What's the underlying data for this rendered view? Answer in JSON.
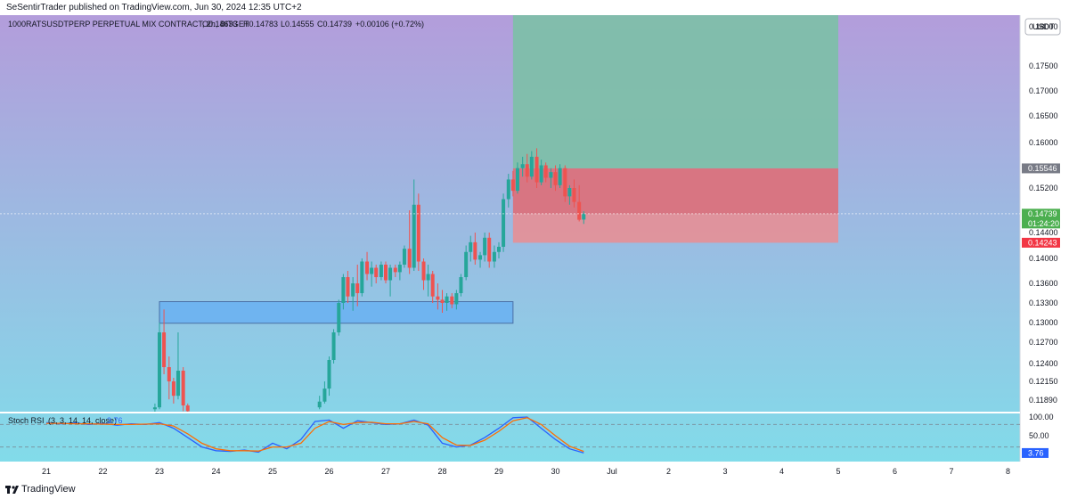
{
  "header": {
    "publisher_line": "SeSentirTrader published on TradingView.com, Jun 30, 2024 12:35 UTC+2"
  },
  "footer": {
    "brand": "TradingView",
    "logo_icon": "tradingview-logo-icon"
  },
  "colors": {
    "bull": "#26a69a",
    "bear": "#ef5350",
    "bg_top": "#b39ddb",
    "bg_bottom": "#80deea",
    "target_zone": "#7cc0a6",
    "stop_zone": "#de6e78",
    "demand_zone": "#6fb4f0",
    "rsi_k": "#2962ff",
    "rsi_d": "#ff6d00"
  },
  "chart_data": [
    {
      "type": "candlestick",
      "symbol_line": "1000RATSUSDTPERP PERPETUAL MIX CONTRACT, 2h, BITGET",
      "ohlc_line": {
        "open": "O0.14633",
        "high": "H0.14783",
        "low": "L0.14555",
        "close": "C0.14739",
        "change": "+0.00106 (+0.72%)"
      },
      "currency": "USDT",
      "y_ticks": [
        "0.18000",
        "0.17500",
        "0.17000",
        "0.16500",
        "0.16000",
        "0.15200",
        "0.14400",
        "0.14000",
        "0.13600",
        "0.13300",
        "0.13000",
        "0.12700",
        "0.12400",
        "0.12150",
        "0.11890"
      ],
      "y_tick_values": [
        0.18,
        0.175,
        0.17,
        0.165,
        0.16,
        0.152,
        0.144,
        0.14,
        0.136,
        0.133,
        0.13,
        0.127,
        0.124,
        0.1215,
        0.1189
      ],
      "x_ticks": [
        "21",
        "22",
        "23",
        "24",
        "25",
        "26",
        "27",
        "28",
        "29",
        "30",
        "Jul",
        "2",
        "3",
        "4",
        "5",
        "6",
        "7",
        "8"
      ],
      "price_labels": {
        "target_entry": "0.15546",
        "last_price": "0.14739",
        "countdown": "01:24:20",
        "stop": "0.14243"
      },
      "price_label_values": {
        "target_entry": 0.15546,
        "last_price": 0.14739,
        "stop": 0.14243
      },
      "zones": {
        "target": {
          "from_day": 29.25,
          "to_day": 35.0,
          "price_low": 0.15546,
          "price_high": 0.1825
        },
        "stop": {
          "from_day": 29.25,
          "to_day": 35.0,
          "price_low": 0.14243,
          "price_high": 0.15546
        },
        "demand": {
          "from_day": 23.0,
          "to_day": 29.25,
          "price_low": 0.1299,
          "price_high": 0.1332
        }
      },
      "candles": [
        {
          "d": 22.92,
          "o": 0.1165,
          "h": 0.118,
          "l": 0.115,
          "c": 0.117
        },
        {
          "d": 23.0,
          "o": 0.117,
          "h": 0.13,
          "l": 0.1165,
          "c": 0.1285
        },
        {
          "d": 23.08,
          "o": 0.1285,
          "h": 0.132,
          "l": 0.1225,
          "c": 0.1235
        },
        {
          "d": 23.17,
          "o": 0.1235,
          "h": 0.125,
          "l": 0.119,
          "c": 0.1215
        },
        {
          "d": 23.25,
          "o": 0.1215,
          "h": 0.122,
          "l": 0.118,
          "c": 0.1195
        },
        {
          "d": 23.33,
          "o": 0.1195,
          "h": 0.1285,
          "l": 0.119,
          "c": 0.123
        },
        {
          "d": 23.42,
          "o": 0.123,
          "h": 0.1235,
          "l": 0.116,
          "c": 0.1175
        },
        {
          "d": 23.5,
          "o": 0.1175,
          "h": 0.118,
          "l": 0.115,
          "c": 0.116
        },
        {
          "d": 25.83,
          "o": 0.117,
          "h": 0.1195,
          "l": 0.1165,
          "c": 0.1185
        },
        {
          "d": 25.92,
          "o": 0.1185,
          "h": 0.1215,
          "l": 0.118,
          "c": 0.1205
        },
        {
          "d": 26.0,
          "o": 0.1205,
          "h": 0.125,
          "l": 0.1195,
          "c": 0.1245
        },
        {
          "d": 26.08,
          "o": 0.1245,
          "h": 0.129,
          "l": 0.124,
          "c": 0.1285
        },
        {
          "d": 26.17,
          "o": 0.1285,
          "h": 0.1335,
          "l": 0.128,
          "c": 0.133
        },
        {
          "d": 26.25,
          "o": 0.133,
          "h": 0.1375,
          "l": 0.132,
          "c": 0.137
        },
        {
          "d": 26.33,
          "o": 0.137,
          "h": 0.138,
          "l": 0.133,
          "c": 0.134
        },
        {
          "d": 26.42,
          "o": 0.134,
          "h": 0.137,
          "l": 0.1318,
          "c": 0.136
        },
        {
          "d": 26.5,
          "o": 0.136,
          "h": 0.139,
          "l": 0.1325,
          "c": 0.1345
        },
        {
          "d": 26.58,
          "o": 0.1345,
          "h": 0.14,
          "l": 0.134,
          "c": 0.1395
        },
        {
          "d": 26.67,
          "o": 0.1395,
          "h": 0.141,
          "l": 0.1365,
          "c": 0.1375
        },
        {
          "d": 26.75,
          "o": 0.1375,
          "h": 0.1395,
          "l": 0.1355,
          "c": 0.1385
        },
        {
          "d": 26.83,
          "o": 0.1385,
          "h": 0.139,
          "l": 0.136,
          "c": 0.137
        },
        {
          "d": 26.92,
          "o": 0.137,
          "h": 0.1395,
          "l": 0.1365,
          "c": 0.139
        },
        {
          "d": 27.0,
          "o": 0.139,
          "h": 0.1395,
          "l": 0.136,
          "c": 0.1365
        },
        {
          "d": 27.08,
          "o": 0.1365,
          "h": 0.139,
          "l": 0.134,
          "c": 0.1385
        },
        {
          "d": 27.17,
          "o": 0.1385,
          "h": 0.139,
          "l": 0.137,
          "c": 0.1378
        },
        {
          "d": 27.25,
          "o": 0.1378,
          "h": 0.1395,
          "l": 0.1365,
          "c": 0.139
        },
        {
          "d": 27.33,
          "o": 0.139,
          "h": 0.142,
          "l": 0.1385,
          "c": 0.1415
        },
        {
          "d": 27.42,
          "o": 0.1415,
          "h": 0.148,
          "l": 0.1375,
          "c": 0.1385
        },
        {
          "d": 27.5,
          "o": 0.1385,
          "h": 0.1535,
          "l": 0.138,
          "c": 0.149
        },
        {
          "d": 27.58,
          "o": 0.149,
          "h": 0.151,
          "l": 0.138,
          "c": 0.1395
        },
        {
          "d": 27.67,
          "o": 0.1395,
          "h": 0.14,
          "l": 0.135,
          "c": 0.1365
        },
        {
          "d": 27.75,
          "o": 0.1365,
          "h": 0.139,
          "l": 0.134,
          "c": 0.1375
        },
        {
          "d": 27.83,
          "o": 0.1375,
          "h": 0.138,
          "l": 0.133,
          "c": 0.134
        },
        {
          "d": 27.92,
          "o": 0.134,
          "h": 0.136,
          "l": 0.132,
          "c": 0.1335
        },
        {
          "d": 28.0,
          "o": 0.1335,
          "h": 0.135,
          "l": 0.1315,
          "c": 0.133
        },
        {
          "d": 28.08,
          "o": 0.133,
          "h": 0.1345,
          "l": 0.1318,
          "c": 0.134
        },
        {
          "d": 28.17,
          "o": 0.134,
          "h": 0.1345,
          "l": 0.1322,
          "c": 0.1328
        },
        {
          "d": 28.25,
          "o": 0.1328,
          "h": 0.135,
          "l": 0.132,
          "c": 0.1345
        },
        {
          "d": 28.33,
          "o": 0.1345,
          "h": 0.1375,
          "l": 0.134,
          "c": 0.137
        },
        {
          "d": 28.42,
          "o": 0.137,
          "h": 0.142,
          "l": 0.1365,
          "c": 0.141
        },
        {
          "d": 28.5,
          "o": 0.141,
          "h": 0.1435,
          "l": 0.1395,
          "c": 0.1425
        },
        {
          "d": 28.58,
          "o": 0.1425,
          "h": 0.144,
          "l": 0.139,
          "c": 0.1398
        },
        {
          "d": 28.67,
          "o": 0.1398,
          "h": 0.141,
          "l": 0.1385,
          "c": 0.1405
        },
        {
          "d": 28.75,
          "o": 0.1405,
          "h": 0.144,
          "l": 0.1395,
          "c": 0.1432
        },
        {
          "d": 28.83,
          "o": 0.1432,
          "h": 0.144,
          "l": 0.1385,
          "c": 0.1395
        },
        {
          "d": 28.92,
          "o": 0.1395,
          "h": 0.142,
          "l": 0.1385,
          "c": 0.141
        },
        {
          "d": 29.0,
          "o": 0.141,
          "h": 0.1425,
          "l": 0.14,
          "c": 0.1418
        },
        {
          "d": 29.08,
          "o": 0.1418,
          "h": 0.151,
          "l": 0.141,
          "c": 0.15
        },
        {
          "d": 29.17,
          "o": 0.15,
          "h": 0.1545,
          "l": 0.1485,
          "c": 0.1535
        },
        {
          "d": 29.25,
          "o": 0.1535,
          "h": 0.155,
          "l": 0.1505,
          "c": 0.1515
        },
        {
          "d": 29.33,
          "o": 0.1515,
          "h": 0.1565,
          "l": 0.151,
          "c": 0.1555
        },
        {
          "d": 29.42,
          "o": 0.1555,
          "h": 0.1575,
          "l": 0.154,
          "c": 0.1562
        },
        {
          "d": 29.5,
          "o": 0.1562,
          "h": 0.158,
          "l": 0.153,
          "c": 0.154
        },
        {
          "d": 29.58,
          "o": 0.154,
          "h": 0.1585,
          "l": 0.1535,
          "c": 0.1575
        },
        {
          "d": 29.67,
          "o": 0.1575,
          "h": 0.159,
          "l": 0.152,
          "c": 0.153
        },
        {
          "d": 29.75,
          "o": 0.153,
          "h": 0.157,
          "l": 0.1525,
          "c": 0.156
        },
        {
          "d": 29.83,
          "o": 0.156,
          "h": 0.1565,
          "l": 0.153,
          "c": 0.1538
        },
        {
          "d": 29.92,
          "o": 0.1538,
          "h": 0.1555,
          "l": 0.152,
          "c": 0.1548
        },
        {
          "d": 30.0,
          "o": 0.1548,
          "h": 0.156,
          "l": 0.1515,
          "c": 0.1525
        },
        {
          "d": 30.08,
          "o": 0.1525,
          "h": 0.1562,
          "l": 0.152,
          "c": 0.1555
        },
        {
          "d": 30.17,
          "o": 0.1555,
          "h": 0.156,
          "l": 0.1495,
          "c": 0.1505
        },
        {
          "d": 30.25,
          "o": 0.1505,
          "h": 0.1525,
          "l": 0.149,
          "c": 0.152
        },
        {
          "d": 30.33,
          "o": 0.152,
          "h": 0.1535,
          "l": 0.1485,
          "c": 0.1495
        },
        {
          "d": 30.42,
          "o": 0.1495,
          "h": 0.1525,
          "l": 0.146,
          "c": 0.1463
        },
        {
          "d": 30.5,
          "o": 0.14633,
          "h": 0.14783,
          "l": 0.14555,
          "c": 0.14739
        }
      ]
    },
    {
      "type": "line",
      "indicator": "Stoch RSI",
      "params": "(3, 3, 14, 14, close)",
      "current_value": "3.76",
      "current_value_num": 3.76,
      "y_ticks": [
        "100.00",
        "50.00"
      ],
      "y_tick_values": [
        100,
        50
      ],
      "ylim": [
        0,
        100
      ],
      "x": [
        21.0,
        21.25,
        21.5,
        21.75,
        22.0,
        22.25,
        22.5,
        22.75,
        23.0,
        23.25,
        23.5,
        23.75,
        24.0,
        24.25,
        24.5,
        24.75,
        25.0,
        25.25,
        25.5,
        25.75,
        26.0,
        26.25,
        26.5,
        26.75,
        27.0,
        27.25,
        27.5,
        27.75,
        28.0,
        28.25,
        28.5,
        28.75,
        29.0,
        29.25,
        29.5,
        29.75,
        30.0,
        30.25,
        30.5
      ],
      "series": [
        {
          "values": [
            85,
            82,
            84,
            80,
            83,
            78,
            82,
            80,
            85,
            70,
            45,
            20,
            10,
            8,
            12,
            6,
            30,
            15,
            40,
            88,
            92,
            70,
            90,
            85,
            80,
            82,
            92,
            78,
            30,
            20,
            25,
            45,
            70,
            98,
            100,
            70,
            40,
            15,
            4
          ]
        },
        {
          "values": [
            83,
            83,
            82,
            82,
            81,
            80,
            80,
            81,
            82,
            76,
            55,
            30,
            15,
            10,
            10,
            9,
            20,
            20,
            30,
            70,
            88,
            80,
            85,
            86,
            82,
            82,
            88,
            82,
            45,
            25,
            24,
            38,
            62,
            90,
            98,
            80,
            50,
            22,
            8
          ]
        }
      ]
    }
  ]
}
